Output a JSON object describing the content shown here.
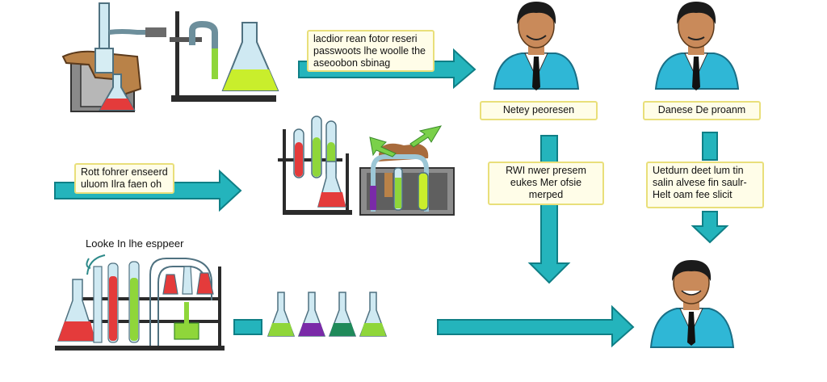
{
  "colors": {
    "arrow": "#24b4bc",
    "arrow_stroke": "#0f7f86",
    "label_bg": "#fffde8",
    "label_border": "#e9df7a",
    "shirt": "#2fb7d6",
    "skin": "#c98a5a",
    "hair": "#1b1b1b",
    "liquid_red": "#e43b3b",
    "liquid_green": "#8fd63a",
    "liquid_lime": "#c9ee2c",
    "liquid_purple": "#7a2aa8",
    "liquid_teal": "#1f8a5a",
    "glass": "#cfe9f2",
    "stand": "#2b2b2b"
  },
  "labels": {
    "top_middle": [
      "lacdior rean fotor reseri",
      "passwoots lhe woolle the",
      "aseoobon sbinag"
    ],
    "left_middle": [
      "Rott fohrer enseerd",
      "uluom Ilra faen oh"
    ],
    "bottom_left": "Looke  In lhe esppeer",
    "person1_name": "Netey peoresen",
    "person2_name": "Danese De proanm",
    "center_right": [
      "RWI nwer presem",
      "eukes Mer ofsie",
      "merped"
    ],
    "far_right": [
      "Uetdurn deet lum tin",
      "salin alvese fin saulr-",
      "Helt oam fee slicit"
    ]
  },
  "icons": {
    "apparatus_top_left": "distillation-apparatus-icon",
    "apparatus_mid": "test-tube-rack-icon",
    "apparatus_mid_box": "u-tube-tray-icon",
    "apparatus_bottom_left": "tube-rack-flask-icon",
    "flasks_row": "small-flasks-icon",
    "person": "scientist-avatar-icon",
    "arrow": "arrow-right-icon"
  }
}
